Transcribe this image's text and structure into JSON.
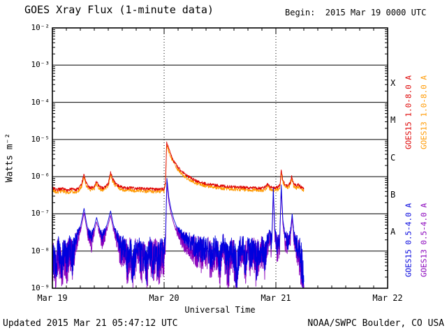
{
  "header": {
    "title": "GOES Xray Flux (1-minute data)",
    "begin": "Begin:  2015 Mar 19 0000 UTC"
  },
  "footer": {
    "updated": "Updated 2015 Mar 21 05:47:12 UTC",
    "source": "NOAA/SWPC Boulder, CO USA"
  },
  "chart_data": {
    "type": "line",
    "title": "GOES Xray Flux (1-minute data)",
    "xlabel": "Universal Time",
    "ylabel": "Watts m⁻²",
    "x_range_hours": [
      0,
      72
    ],
    "y_log_range": [
      -9,
      -2
    ],
    "grid": true,
    "x_ticks": [
      {
        "hour": 0,
        "label": "Mar 19"
      },
      {
        "hour": 24,
        "label": "Mar 20"
      },
      {
        "hour": 48,
        "label": "Mar 21"
      },
      {
        "hour": 72,
        "label": "Mar 22"
      }
    ],
    "y_ticks": [
      {
        "log": -2,
        "label": "10⁻²"
      },
      {
        "log": -3,
        "label": "10⁻³"
      },
      {
        "log": -4,
        "label": "10⁻⁴"
      },
      {
        "log": -5,
        "label": "10⁻⁵"
      },
      {
        "log": -6,
        "label": "10⁻⁶"
      },
      {
        "log": -7,
        "label": "10⁻⁷"
      },
      {
        "log": -8,
        "label": "10⁻⁸"
      },
      {
        "log": -9,
        "label": "10⁻⁹"
      }
    ],
    "day_boundary_hours": [
      24,
      48
    ],
    "flare_classes": [
      {
        "label": "X",
        "log_center": -3.5
      },
      {
        "label": "M",
        "log_center": -4.5
      },
      {
        "label": "C",
        "log_center": -5.5
      },
      {
        "label": "B",
        "log_center": -6.5
      },
      {
        "label": "A",
        "log_center": -7.5
      }
    ],
    "right_labels": [
      {
        "text": "GOES15 1.0-8.0 A",
        "color": "#dd0000"
      },
      {
        "text": "GOES13 1.0-8.0 A",
        "color": "#ff9900"
      },
      {
        "text": "GOES15 0.5-4.0 A",
        "color": "#0000dd"
      },
      {
        "text": "GOES13 0.5-4.0 A",
        "color": "#8800bb"
      }
    ],
    "point_sets": {
      "long": [
        [
          0,
          5e-07
        ],
        [
          1,
          4.4e-07
        ],
        [
          2,
          4.8e-07
        ],
        [
          3,
          4.3e-07
        ],
        [
          4,
          4.6e-07
        ],
        [
          5,
          4.4e-07
        ],
        [
          5.8,
          5e-07
        ],
        [
          6.3,
          6.5e-07
        ],
        [
          6.8,
          1.15e-06
        ],
        [
          7.2,
          7e-07
        ],
        [
          7.6,
          5.6e-07
        ],
        [
          8.2,
          5e-07
        ],
        [
          9,
          5.4e-07
        ],
        [
          9.5,
          7.5e-07
        ],
        [
          10,
          5.4e-07
        ],
        [
          10.8,
          5e-07
        ],
        [
          11.5,
          5.6e-07
        ],
        [
          12,
          6.5e-07
        ],
        [
          12.5,
          1.3e-06
        ],
        [
          12.9,
          9e-07
        ],
        [
          13.4,
          7e-07
        ],
        [
          14,
          5.8e-07
        ],
        [
          15,
          5.2e-07
        ],
        [
          16,
          4.9e-07
        ],
        [
          17,
          5e-07
        ],
        [
          18,
          4.7e-07
        ],
        [
          19,
          4.9e-07
        ],
        [
          20,
          4.6e-07
        ],
        [
          21,
          4.8e-07
        ],
        [
          22,
          4.5e-07
        ],
        [
          23,
          4.6e-07
        ],
        [
          24,
          4.7e-07
        ],
        [
          24.3,
          7e-07
        ],
        [
          24.55,
          8.5e-06
        ],
        [
          24.9,
          6e-06
        ],
        [
          25.4,
          4e-06
        ],
        [
          26,
          2.7e-06
        ],
        [
          26.7,
          2e-06
        ],
        [
          27.5,
          1.5e-06
        ],
        [
          28.5,
          1.15e-06
        ],
        [
          29.5,
          9.5e-07
        ],
        [
          30.5,
          8e-07
        ],
        [
          31.5,
          7.2e-07
        ],
        [
          32.5,
          6.7e-07
        ],
        [
          33.5,
          6.3e-07
        ],
        [
          34.5,
          6e-07
        ],
        [
          35.5,
          5.8e-07
        ],
        [
          36.5,
          5.6e-07
        ],
        [
          37.5,
          5.5e-07
        ],
        [
          38.5,
          5.4e-07
        ],
        [
          39.5,
          5.3e-07
        ],
        [
          40.5,
          5.2e-07
        ],
        [
          41.5,
          5.1e-07
        ],
        [
          42.5,
          5e-07
        ],
        [
          43.5,
          5e-07
        ],
        [
          44.5,
          4.9e-07
        ],
        [
          45.5,
          5e-07
        ],
        [
          46.3,
          6.3e-07
        ],
        [
          46.8,
          5.2e-07
        ],
        [
          47.6,
          5e-07
        ],
        [
          48.4,
          5.2e-07
        ],
        [
          48.9,
          6e-07
        ],
        [
          49.15,
          1.5e-06
        ],
        [
          49.5,
          8e-07
        ],
        [
          50,
          6.2e-07
        ],
        [
          50.6,
          5.6e-07
        ],
        [
          51.1,
          7e-07
        ],
        [
          51.4,
          1.05e-06
        ],
        [
          51.8,
          6.5e-07
        ],
        [
          52.4,
          5.6e-07
        ],
        [
          52.9,
          6.2e-07
        ],
        [
          53.4,
          5.2e-07
        ],
        [
          54,
          4.8e-07
        ]
      ],
      "short": [
        [
          0,
          8e-09
        ],
        [
          0.7,
          3e-09
        ],
        [
          1.3,
          1.2e-08
        ],
        [
          1.9,
          4e-09
        ],
        [
          2.5,
          1e-08
        ],
        [
          3.1,
          5e-09
        ],
        [
          3.7,
          1.4e-08
        ],
        [
          4.3,
          6e-09
        ],
        [
          4.9,
          1.8e-08
        ],
        [
          5.5,
          3e-08
        ],
        [
          6.1,
          5e-08
        ],
        [
          6.8,
          1.4e-07
        ],
        [
          7.3,
          6e-08
        ],
        [
          7.8,
          3e-08
        ],
        [
          8.4,
          2.2e-08
        ],
        [
          9,
          4.5e-08
        ],
        [
          9.5,
          8e-08
        ],
        [
          10.1,
          4e-08
        ],
        [
          10.7,
          2.5e-08
        ],
        [
          11.3,
          3.5e-08
        ],
        [
          11.9,
          6e-08
        ],
        [
          12.5,
          1.2e-07
        ],
        [
          13.1,
          5e-08
        ],
        [
          13.7,
          3e-08
        ],
        [
          14.3,
          1.8e-08
        ],
        [
          14.9,
          1e-08
        ],
        [
          15.5,
          1.4e-08
        ],
        [
          16.1,
          6e-09
        ],
        [
          16.7,
          1.1e-08
        ],
        [
          17.3,
          4e-09
        ],
        [
          17.9,
          9e-09
        ],
        [
          18.5,
          1.5e-08
        ],
        [
          19.1,
          5e-09
        ],
        [
          19.7,
          1e-08
        ],
        [
          20.3,
          4e-09
        ],
        [
          20.9,
          1.1e-08
        ],
        [
          21.5,
          6e-09
        ],
        [
          22.1,
          1e-08
        ],
        [
          22.7,
          5e-09
        ],
        [
          23.3,
          9e-09
        ],
        [
          23.9,
          8e-09
        ],
        [
          24.3,
          2.5e-08
        ],
        [
          24.6,
          9e-07
        ],
        [
          25,
          2.8e-07
        ],
        [
          25.5,
          1.3e-07
        ],
        [
          26.1,
          7e-08
        ],
        [
          26.7,
          4.5e-08
        ],
        [
          27.4,
          3.2e-08
        ],
        [
          28.2,
          2.4e-08
        ],
        [
          29,
          2e-08
        ],
        [
          30,
          1.6e-08
        ],
        [
          31,
          1.2e-08
        ],
        [
          32,
          1e-08
        ],
        [
          33,
          1.3e-08
        ],
        [
          34,
          8e-09
        ],
        [
          35,
          1.2e-08
        ],
        [
          36,
          6e-09
        ],
        [
          36.6,
          1.8e-08
        ],
        [
          37.2,
          8e-09
        ],
        [
          37.8,
          4e-09
        ],
        [
          38.4,
          1.3e-08
        ],
        [
          39,
          7e-09
        ],
        [
          39.6,
          3e-09
        ],
        [
          40.2,
          1e-08
        ],
        [
          40.8,
          1.5e-08
        ],
        [
          41.4,
          6e-09
        ],
        [
          42,
          1.1e-08
        ],
        [
          42.6,
          7e-09
        ],
        [
          43.2,
          1.3e-08
        ],
        [
          43.8,
          5e-09
        ],
        [
          44.4,
          1e-08
        ],
        [
          45,
          1.2e-08
        ],
        [
          45.6,
          7e-09
        ],
        [
          46.2,
          1.6e-08
        ],
        [
          46.7,
          3.5e-08
        ],
        [
          47.1,
          1.4e-08
        ],
        [
          47.45,
          5e-07
        ],
        [
          47.8,
          3e-08
        ],
        [
          48.3,
          1.4e-08
        ],
        [
          48.8,
          2e-08
        ],
        [
          49.15,
          6e-07
        ],
        [
          49.5,
          7e-08
        ],
        [
          50,
          2.4e-08
        ],
        [
          50.6,
          1.7e-08
        ],
        [
          51.1,
          3e-08
        ],
        [
          51.5,
          1e-07
        ],
        [
          52,
          2e-08
        ],
        [
          52.6,
          1.4e-08
        ],
        [
          53.1,
          9e-09
        ],
        [
          53.6,
          4e-09
        ],
        [
          54,
          1.2e-09
        ]
      ]
    },
    "series": [
      {
        "name": "GOES13 1.0-8.0 A",
        "color": "#ff9900",
        "points": "long",
        "offset_log": -0.06,
        "noise": 0.05,
        "noise_fade": 99,
        "seed": 11,
        "step": 0.06
      },
      {
        "name": "GOES15 1.0-8.0 A",
        "color": "#dd0000",
        "points": "long",
        "offset_log": 0,
        "noise": 0.04,
        "noise_fade": 99,
        "seed": 7,
        "step": 0.06
      },
      {
        "name": "GOES13 0.5-4.0 A",
        "color": "#8800bb",
        "points": "short",
        "offset_log": -0.12,
        "noise": 0.6,
        "noise_fade": -7.3,
        "seed": 5,
        "step": 0.035
      },
      {
        "name": "GOES15 0.5-4.0 A",
        "color": "#0000dd",
        "points": "short",
        "offset_log": 0,
        "noise": 0.55,
        "noise_fade": -7.3,
        "seed": 3,
        "step": 0.035
      }
    ]
  }
}
